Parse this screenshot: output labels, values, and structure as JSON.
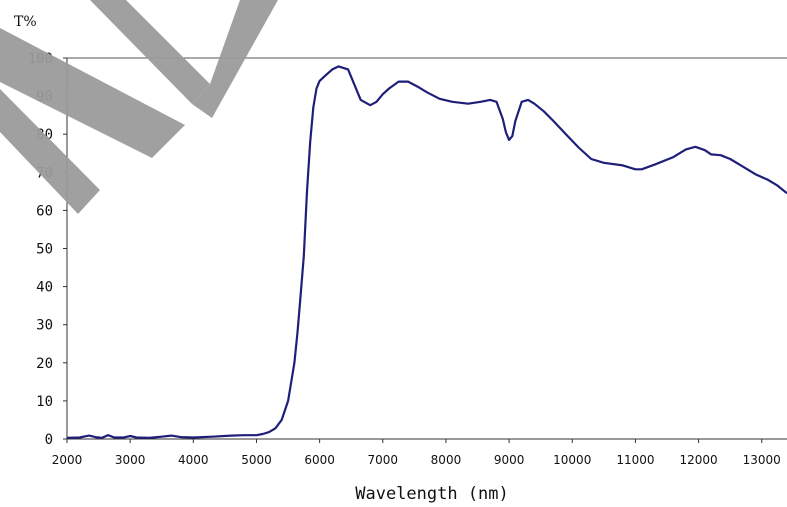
{
  "chart_data": {
    "type": "line",
    "title": "",
    "xlabel": "Wavelength (nm)",
    "ylabel": "T%",
    "xlim": [
      2000,
      13400
    ],
    "ylim": [
      0,
      100
    ],
    "x_ticks": [
      2000,
      3000,
      4000,
      5000,
      6000,
      7000,
      8000,
      9000,
      10000,
      11000,
      12000,
      13000
    ],
    "y_ticks": [
      0,
      10,
      20,
      30,
      40,
      50,
      60,
      70,
      80,
      90,
      100
    ],
    "grid": false,
    "watermark": true,
    "line_color": "#1f1f7a",
    "series": [
      {
        "x": [
          2000,
          2200,
          2350,
          2450,
          2550,
          2650,
          2750,
          2900,
          3000,
          3100,
          3300,
          3500,
          3650,
          3800,
          4000,
          4300,
          4600,
          4800,
          5000,
          5100,
          5200,
          5300,
          5400,
          5500,
          5600,
          5650,
          5700,
          5750,
          5800,
          5850,
          5900,
          5950,
          6000,
          6100,
          6200,
          6300,
          6450,
          6550,
          6650,
          6800,
          6900,
          7000,
          7100,
          7250,
          7400,
          7550,
          7700,
          7900,
          8100,
          8350,
          8550,
          8700,
          8800,
          8900,
          8950,
          9000,
          9050,
          9100,
          9200,
          9300,
          9400,
          9550,
          9700,
          9900,
          10100,
          10300,
          10500,
          10800,
          11000,
          11100,
          11300,
          11600,
          11800,
          11950,
          12100,
          12200,
          12350,
          12500,
          12700,
          12900,
          13100,
          13250,
          13400
        ],
        "y": [
          0.3,
          0.4,
          0.9,
          0.5,
          0.3,
          1.0,
          0.4,
          0.4,
          0.8,
          0.4,
          0.3,
          0.6,
          0.9,
          0.5,
          0.4,
          0.6,
          0.9,
          1.0,
          1.0,
          1.3,
          1.8,
          2.8,
          5.0,
          10.0,
          20.0,
          28.0,
          38.0,
          48.0,
          65.0,
          78.0,
          87.0,
          92.0,
          94.0,
          95.5,
          97.0,
          97.8,
          97.0,
          93.0,
          89.0,
          87.6,
          88.5,
          90.5,
          92.0,
          93.8,
          93.8,
          92.5,
          91.0,
          89.3,
          88.5,
          88.0,
          88.5,
          89.0,
          88.5,
          84.0,
          80.5,
          78.5,
          79.5,
          83.5,
          88.5,
          89.0,
          88.0,
          86.0,
          83.5,
          80.0,
          76.5,
          73.5,
          72.5,
          71.8,
          70.8,
          70.8,
          72.0,
          74.0,
          76.0,
          76.7,
          75.8,
          74.7,
          74.5,
          73.5,
          71.5,
          69.5,
          68.0,
          66.5,
          64.5
        ]
      }
    ]
  }
}
